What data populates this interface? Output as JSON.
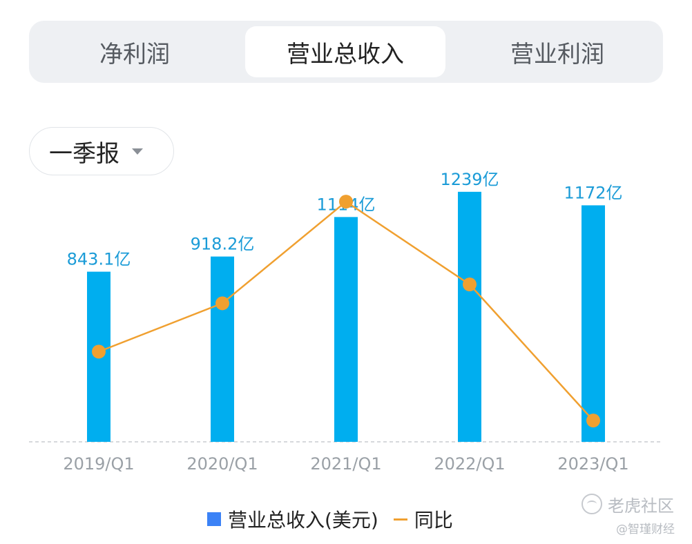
{
  "tabs": [
    {
      "label": "净利润",
      "active": false
    },
    {
      "label": "营业总收入",
      "active": true
    },
    {
      "label": "营业利润",
      "active": false
    }
  ],
  "period_selector": {
    "label": "一季报"
  },
  "legend": {
    "bar_label": "营业总收入(美元)",
    "line_label": "同比"
  },
  "watermark": {
    "main": "老虎社区",
    "sub": "@智瑾财经"
  },
  "colors": {
    "bar": "#00aeef",
    "line": "#f0a030",
    "label": "#1a9bd7",
    "legend_bar": "#3b82f6"
  },
  "chart_data": {
    "type": "bar",
    "categories": [
      "2019/Q1",
      "2020/Q1",
      "2021/Q1",
      "2022/Q1",
      "2023/Q1"
    ],
    "series": [
      {
        "name": "营业总收入(美元)",
        "type": "bar",
        "values": [
          843.1,
          918.2,
          1114,
          1239,
          1172
        ],
        "labels": [
          "843.1亿",
          "918.2亿",
          "1114亿",
          "1239亿",
          "1172亿"
        ],
        "unit": "亿"
      },
      {
        "name": "同比",
        "type": "line",
        "values": [
          3.0,
          8.9,
          21.3,
          11.2,
          -5.4
        ]
      }
    ],
    "ylim": [
      0,
      1300
    ],
    "secondary_ylim": [
      -8,
      24
    ],
    "grid": false,
    "legend_position": "bottom"
  }
}
